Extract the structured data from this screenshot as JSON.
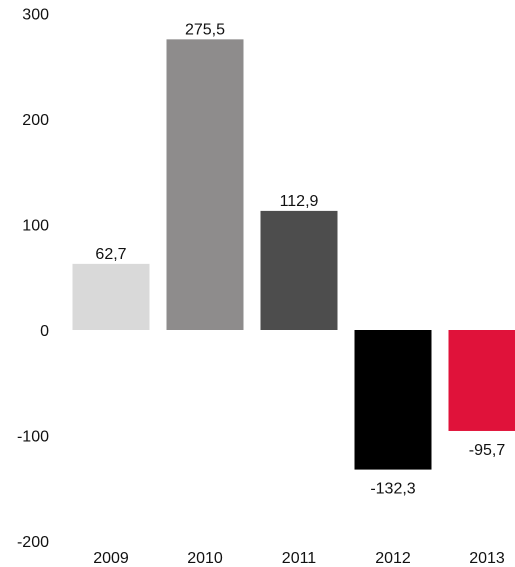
{
  "chart_data": {
    "type": "bar",
    "title": "",
    "xlabel": "",
    "ylabel": "",
    "categories": [
      "2009",
      "2010",
      "2011",
      "2012",
      "2013"
    ],
    "values": [
      62.7,
      275.5,
      112.9,
      -132.3,
      -95.7
    ],
    "value_labels": [
      "62,7",
      "275,5",
      "112,9",
      "-132,3",
      "-95,7"
    ],
    "bar_colors": [
      "#d9d9d9",
      "#8e8c8c",
      "#4d4d4d",
      "#000000",
      "#e0123a"
    ],
    "ylim": [
      -200,
      300
    ],
    "yticks": [
      300,
      200,
      100,
      0,
      -100,
      -200
    ],
    "ytick_labels": [
      "300",
      "200",
      "100",
      "0",
      "-100",
      "-200"
    ],
    "grid": false,
    "legend": "none"
  }
}
